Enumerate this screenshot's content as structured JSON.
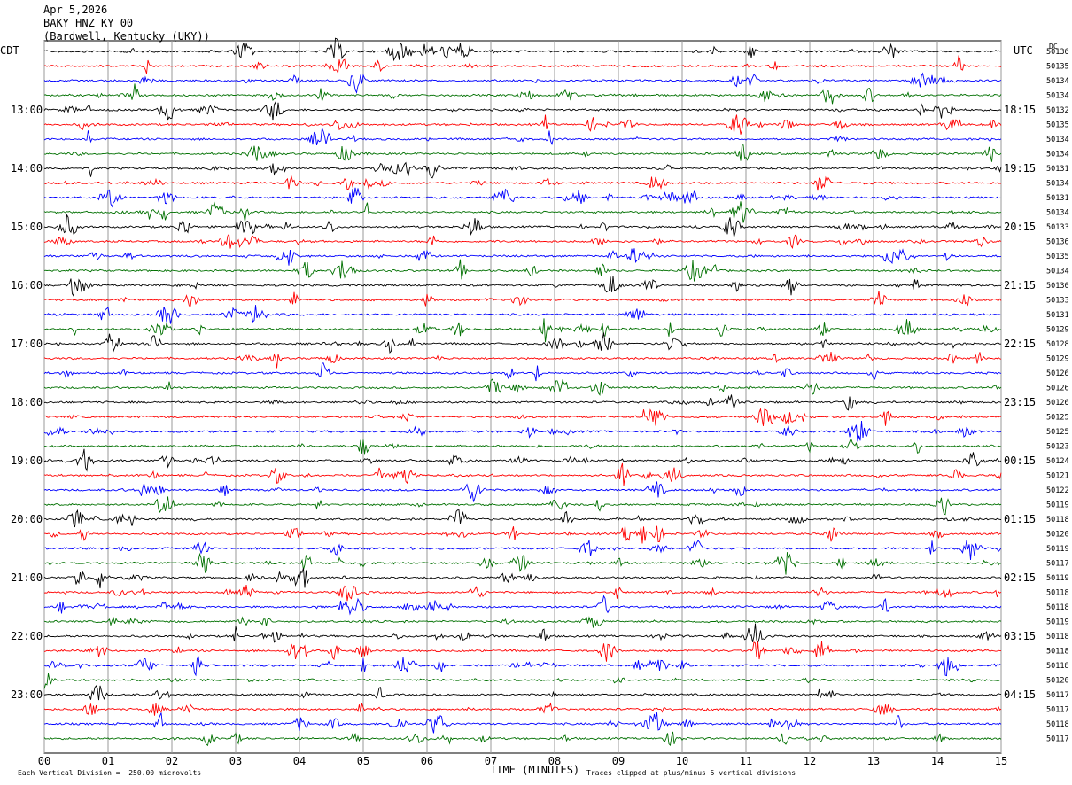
{
  "header": {
    "date": "Apr 5,2026",
    "station": "BAKY HNZ KY 00",
    "location": "(Bardwell, Kentucky (UKY))"
  },
  "left_zone": "CDT",
  "right_zone": "UTC",
  "dc_label": "DC",
  "footer": {
    "scale_note": "Each Vertical Division =  250.00 microvolts",
    "xlabel": "TIME (MINUTES)",
    "clip_note": "Traces clipped at plus/minus 5 vertical divisions"
  },
  "chart_data": {
    "type": "line",
    "title": "BAKY HNZ KY 00",
    "xlabel": "TIME (MINUTES)",
    "xlim": [
      0,
      15
    ],
    "x_ticks": [
      "00",
      "01",
      "02",
      "03",
      "04",
      "05",
      "06",
      "07",
      "08",
      "09",
      "10",
      "11",
      "12",
      "13",
      "14",
      "15"
    ],
    "left_hour_labels": [
      {
        "row": 4,
        "label": "13:00"
      },
      {
        "row": 8,
        "label": "14:00"
      },
      {
        "row": 12,
        "label": "15:00"
      },
      {
        "row": 16,
        "label": "16:00"
      },
      {
        "row": 20,
        "label": "17:00"
      },
      {
        "row": 24,
        "label": "18:00"
      },
      {
        "row": 28,
        "label": "19:00"
      },
      {
        "row": 32,
        "label": "20:00"
      },
      {
        "row": 36,
        "label": "21:00"
      },
      {
        "row": 40,
        "label": "22:00"
      },
      {
        "row": 44,
        "label": "23:00"
      }
    ],
    "right_hour_labels": [
      {
        "row": 4,
        "label": "18:15"
      },
      {
        "row": 8,
        "label": "19:15"
      },
      {
        "row": 12,
        "label": "20:15"
      },
      {
        "row": 16,
        "label": "21:15"
      },
      {
        "row": 20,
        "label": "22:15"
      },
      {
        "row": 24,
        "label": "23:15"
      },
      {
        "row": 28,
        "label": "00:15"
      },
      {
        "row": 32,
        "label": "01:15"
      },
      {
        "row": 36,
        "label": "02:15"
      },
      {
        "row": 40,
        "label": "03:15"
      },
      {
        "row": 44,
        "label": "04:15"
      }
    ],
    "trace_colors": [
      "#000000",
      "#ff0000",
      "#0000ff",
      "#007000"
    ],
    "dc_offsets": [
      "50136",
      "50135",
      "50134",
      "50134",
      "50132",
      "50135",
      "50134",
      "50134",
      "50131",
      "50134",
      "50131",
      "50134",
      "50133",
      "50136",
      "50135",
      "50134",
      "50130",
      "50133",
      "50131",
      "50129",
      "50128",
      "50129",
      "50126",
      "50126",
      "50126",
      "50125",
      "50125",
      "50123",
      "50124",
      "50121",
      "50122",
      "50119",
      "50118",
      "50120",
      "50119",
      "50117",
      "50119",
      "50118",
      "50118",
      "50119",
      "50118",
      "50118",
      "50118",
      "50120",
      "50117",
      "50117",
      "50118",
      "50117"
    ]
  }
}
